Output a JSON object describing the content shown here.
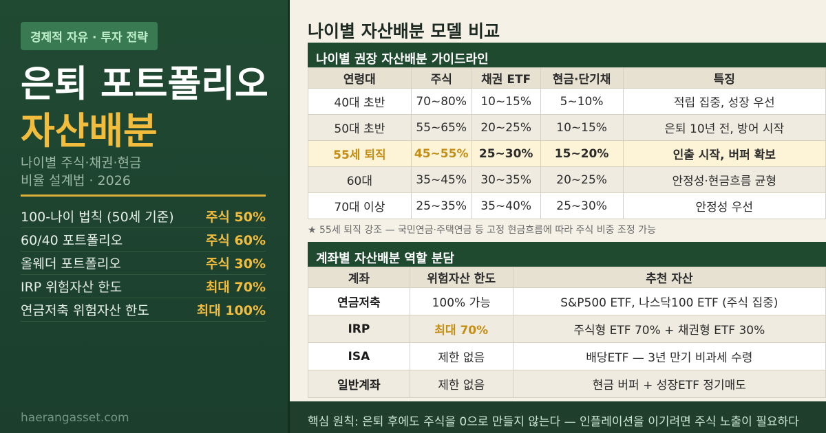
{
  "left": {
    "tag": "경제적 자유 · 투자 전략",
    "title_line1": "은퇴 포트폴리오",
    "title_line2": "자산배분",
    "subtitle_line1": "나이별 주식·채권·현금",
    "subtitle_line2": "비율 설계법 · 2026",
    "rules": [
      {
        "label": "100-나이 법칙 (50세 기준)",
        "value": "주식 50%"
      },
      {
        "label": "60/40 포트폴리오",
        "value": "주식 60%"
      },
      {
        "label": "올웨더 포트폴리오",
        "value": "주식 30%"
      },
      {
        "label": "IRP 위험자산 한도",
        "value": "최대 70%"
      },
      {
        "label": "연금저축 위험자산 한도",
        "value": "최대 100%"
      }
    ],
    "site": "haerangasset.com"
  },
  "right": {
    "title": "나이별 자산배분 모델 비교",
    "section1": "나이별 권장 자산배분 가이드라인",
    "table1": {
      "headers": [
        "연령대",
        "주식",
        "채권 ETF",
        "현금·단기채",
        "특징"
      ],
      "rows": [
        [
          "40대 초반",
          "70~80%",
          "10~15%",
          "5~10%",
          "적립 집중, 성장 우선"
        ],
        [
          "50대 초반",
          "55~65%",
          "20~25%",
          "10~15%",
          "은퇴 10년 전, 방어 시작"
        ],
        [
          "55세 퇴직",
          "45~55%",
          "25~30%",
          "15~20%",
          "인출 시작, 버퍼 확보"
        ],
        [
          "60대",
          "35~45%",
          "30~35%",
          "20~25%",
          "안정성·현금흐름 균형"
        ],
        [
          "70대 이상",
          "25~35%",
          "35~40%",
          "25~30%",
          "안정성 우선"
        ]
      ]
    },
    "note": "★ 55세 퇴직 강조 — 국민연금·주택연금 등 고정 현금흐름에 따라 주식 비중 조정 가능",
    "section2": "계좌별 자산배분 역할 분담",
    "table2": {
      "headers": [
        "계좌",
        "위험자산 한도",
        "추천 자산"
      ],
      "rows": [
        [
          "연금저축",
          "100% 가능",
          "S&P500 ETF, 나스닥100 ETF (주식 집중)"
        ],
        [
          "IRP",
          "최대 70%",
          "주식형 ETF 70% + 채권형 ETF 30%"
        ],
        [
          "ISA",
          "제한 없음",
          "배당ETF — 3년 만기 비과세 수령"
        ],
        [
          "일반계좌",
          "제한 없음",
          "현금 버퍼 + 성장ETF 정기매도"
        ]
      ]
    }
  },
  "footer": "핵심 원칙: 은퇴 후에도 주식을 0으로 만들지 않는다 — 인플레이션을 이기려면 주식 노출이 필요하다"
}
